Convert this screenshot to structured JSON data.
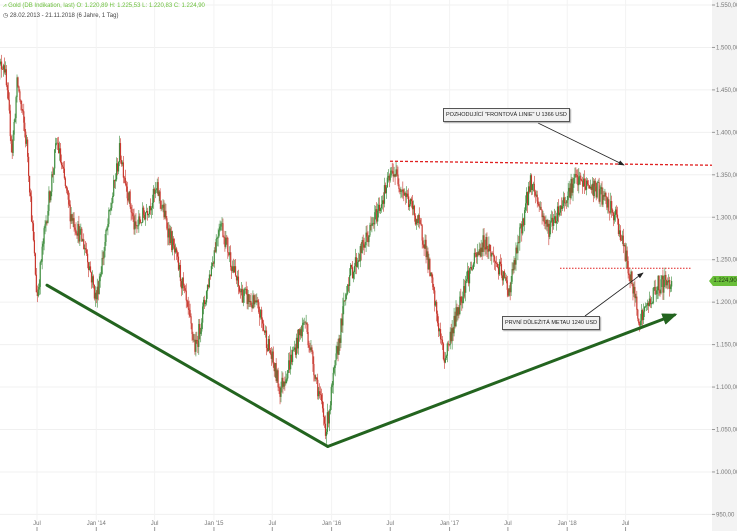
{
  "header": {
    "symbol_icon": "chart-icon",
    "title": "Gold (DB Indikation, last)",
    "ohlc": "O: 1.220,89  H: 1.225,53  L: 1.220,83  C: 1.224,90",
    "range_icon": "clock-icon",
    "range": "28.02.2013 - 21.11.2018",
    "range_length": "(6 Jahre, 1 Tag)"
  },
  "current_price_label": "1.224,90",
  "annotations": {
    "resistance": "POZHODUJÍCÍ \"FRONTOVÁ LINIE\" U 1366 USD",
    "target": "PRVNÍ DŮLEŽITÁ METAU 1240 USD"
  },
  "colors": {
    "up": "#3c8c3c",
    "down": "#c8372d",
    "trend": "#23641f",
    "resistance": "#e02020",
    "accent": "#6abf3a"
  },
  "chart_data": {
    "type": "candlestick",
    "title": "Gold (DB Indikation, last)",
    "xlabel": "",
    "ylabel": "",
    "ylim": [
      950,
      1550
    ],
    "y_ticks": [
      {
        "v": 1550,
        "label": "1.550,00"
      },
      {
        "v": 1500,
        "label": "1.500,00"
      },
      {
        "v": 1450,
        "label": "1.450,00"
      },
      {
        "v": 1400,
        "label": "1.400,00"
      },
      {
        "v": 1350,
        "label": "1.350,00"
      },
      {
        "v": 1300,
        "label": "1.300,00"
      },
      {
        "v": 1250,
        "label": "1.250,00"
      },
      {
        "v": 1200,
        "label": "1.200,00"
      },
      {
        "v": 1150,
        "label": "1.150,00"
      },
      {
        "v": 1100,
        "label": "1.100,00"
      },
      {
        "v": 1050,
        "label": "1.050,00"
      },
      {
        "v": 1000,
        "label": "1.000,00"
      },
      {
        "v": 950,
        "label": "950,00"
      }
    ],
    "x_ticks": [
      {
        "d": "2013-07-01",
        "label": "Jul"
      },
      {
        "d": "2014-01-01",
        "label": "Jan '14"
      },
      {
        "d": "2014-07-01",
        "label": "Jul"
      },
      {
        "d": "2015-01-01",
        "label": "Jan '15"
      },
      {
        "d": "2015-07-01",
        "label": "Jul"
      },
      {
        "d": "2016-01-01",
        "label": "Jan '16"
      },
      {
        "d": "2016-07-01",
        "label": "Jul"
      },
      {
        "d": "2017-01-01",
        "label": "Jan '17"
      },
      {
        "d": "2017-07-01",
        "label": "Jul"
      },
      {
        "d": "2018-01-01",
        "label": "Jan '18"
      },
      {
        "d": "2018-07-01",
        "label": "Jul"
      }
    ],
    "price_path": [
      [
        "2013-03-01",
        1470
      ],
      [
        "2013-03-20",
        1485
      ],
      [
        "2013-04-15",
        1380
      ],
      [
        "2013-05-01",
        1460
      ],
      [
        "2013-06-01",
        1380
      ],
      [
        "2013-07-01",
        1205
      ],
      [
        "2013-07-25",
        1285
      ],
      [
        "2013-09-01",
        1390
      ],
      [
        "2013-10-10",
        1308
      ],
      [
        "2013-12-01",
        1261
      ],
      [
        "2013-12-31",
        1203
      ],
      [
        "2014-03-15",
        1379
      ],
      [
        "2014-05-01",
        1285
      ],
      [
        "2014-07-10",
        1332
      ],
      [
        "2014-09-15",
        1238
      ],
      [
        "2014-11-05",
        1144
      ],
      [
        "2015-01-20",
        1297
      ],
      [
        "2015-03-20",
        1214
      ],
      [
        "2015-05-20",
        1191
      ],
      [
        "2015-07-25",
        1097
      ],
      [
        "2015-10-10",
        1179
      ],
      [
        "2015-12-15",
        1049
      ],
      [
        "2016-02-20",
        1226
      ],
      [
        "2016-05-01",
        1285
      ],
      [
        "2016-07-10",
        1356
      ],
      [
        "2016-09-10",
        1308
      ],
      [
        "2016-10-15",
        1273
      ],
      [
        "2016-12-15",
        1132
      ],
      [
        "2017-02-20",
        1226
      ],
      [
        "2017-04-20",
        1273
      ],
      [
        "2017-07-05",
        1214
      ],
      [
        "2017-09-10",
        1344
      ],
      [
        "2017-11-01",
        1285
      ],
      [
        "2018-01-25",
        1344
      ],
      [
        "2018-04-05",
        1332
      ],
      [
        "2018-06-05",
        1297
      ],
      [
        "2018-08-15",
        1179
      ],
      [
        "2018-10-10",
        1220
      ],
      [
        "2018-11-21",
        1225
      ]
    ],
    "last_close": 1224.9,
    "resistance_level": 1366,
    "target_level": 1240,
    "trendlines": [
      {
        "from": [
          "2013-08-01",
          1220
        ],
        "to": [
          "2015-12-20",
          1030
        ]
      },
      {
        "from": [
          "2015-12-20",
          1030
        ],
        "to": [
          "2018-11-30",
          1185
        ]
      }
    ]
  }
}
